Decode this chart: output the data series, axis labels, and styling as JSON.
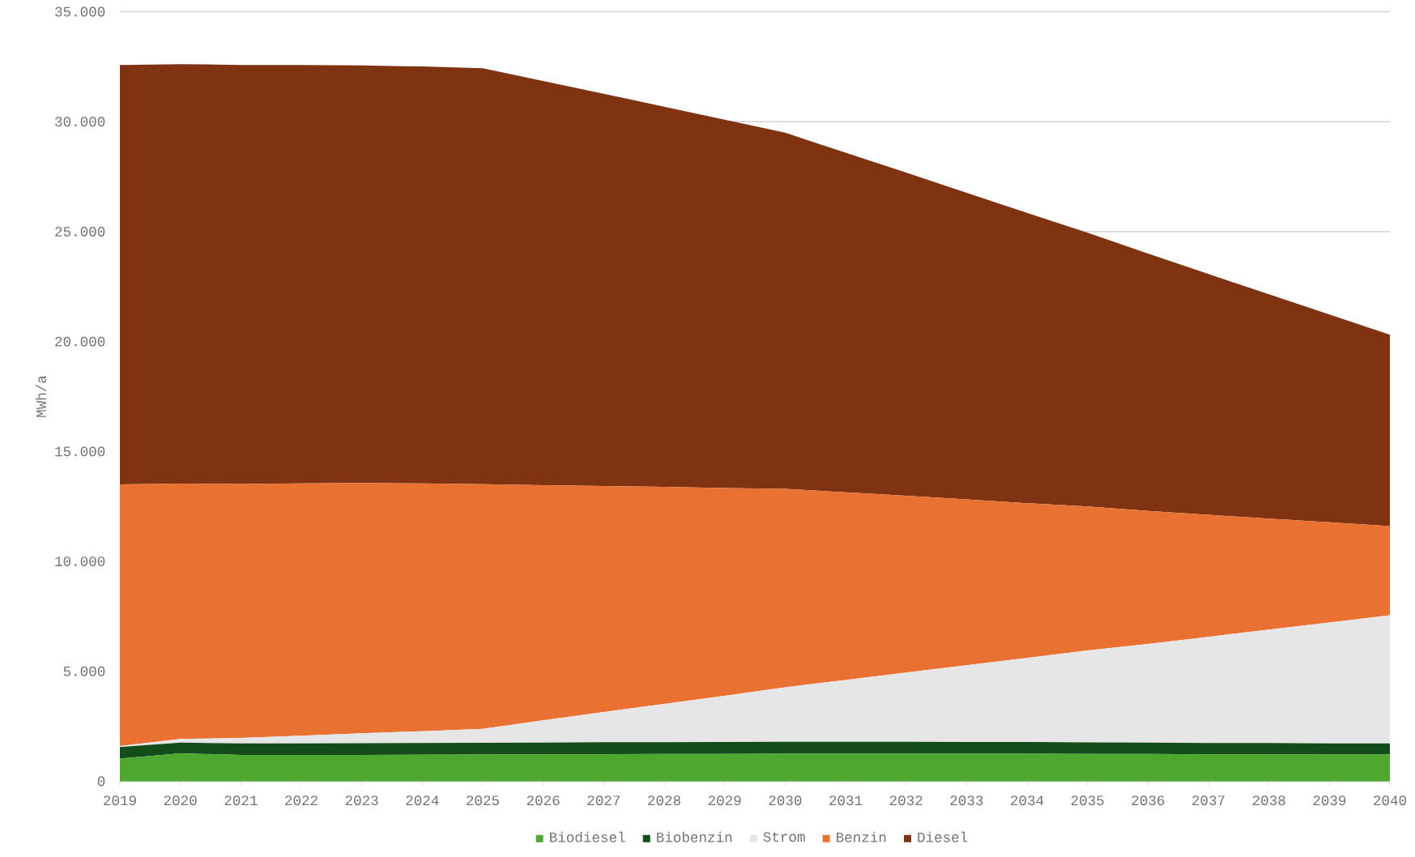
{
  "chart_data": {
    "type": "area",
    "stacked": true,
    "ylabel": "MWh/a",
    "categories": [
      "2019",
      "2020",
      "2021",
      "2022",
      "2023",
      "2024",
      "2025",
      "2026",
      "2027",
      "2028",
      "2029",
      "2030",
      "2031",
      "2032",
      "2033",
      "2034",
      "2035",
      "2036",
      "2037",
      "2038",
      "2039",
      "2040"
    ],
    "series": [
      {
        "name": "Biodiesel",
        "color": "#4ea72e",
        "values": [
          1030,
          1270,
          1200,
          1200,
          1200,
          1210,
          1220,
          1230,
          1230,
          1240,
          1240,
          1250,
          1250,
          1250,
          1250,
          1250,
          1240,
          1240,
          1230,
          1230,
          1220,
          1220
        ]
      },
      {
        "name": "Biobenzin",
        "color": "#144c1c",
        "values": [
          530,
          490,
          520,
          520,
          530,
          530,
          530,
          530,
          550,
          540,
          550,
          550,
          550,
          550,
          540,
          540,
          530,
          520,
          510,
          510,
          500,
          500
        ]
      },
      {
        "name": "Strom",
        "color": "#e7e6e6",
        "values": [
          40,
          170,
          250,
          350,
          450,
          540,
          640,
          1010,
          1370,
          1740,
          2100,
          2470,
          2810,
          3150,
          3490,
          3820,
          4180,
          4490,
          4830,
          5160,
          5500,
          5830
        ]
      },
      {
        "name": "Benzin",
        "color": "#e97132",
        "values": [
          11900,
          11610,
          11550,
          11480,
          11390,
          11270,
          11120,
          10700,
          10280,
          9870,
          9450,
          9030,
          8530,
          8040,
          7540,
          7040,
          6550,
          6050,
          5550,
          5050,
          4560,
          4060
        ]
      },
      {
        "name": "Diesel",
        "color": "#7f3311",
        "values": [
          19080,
          19080,
          19060,
          19030,
          18990,
          18960,
          18920,
          18380,
          17840,
          17290,
          16750,
          16200,
          15450,
          14700,
          13950,
          13200,
          12450,
          11700,
          10950,
          10200,
          9450,
          8700
        ]
      }
    ],
    "ylim": [
      0,
      35000
    ],
    "yticks": [
      {
        "value": 0,
        "label": "0"
      },
      {
        "value": 5000,
        "label": "5.000"
      },
      {
        "value": 10000,
        "label": "10.000"
      },
      {
        "value": 15000,
        "label": "15.000"
      },
      {
        "value": 20000,
        "label": "20.000"
      },
      {
        "value": 25000,
        "label": "25.000"
      },
      {
        "value": 30000,
        "label": "30.000"
      },
      {
        "value": 35000,
        "label": "35.000"
      }
    ],
    "grid": "y",
    "legend": "bottom"
  }
}
